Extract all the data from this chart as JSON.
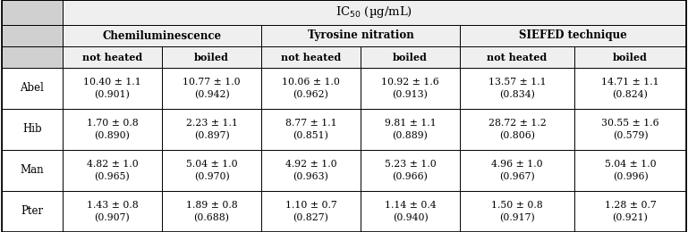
{
  "title_row": "IC₅₀ (µg/mL)",
  "title_row_display": "IC$_{50}$ (µg/mL)",
  "col_groups": [
    "Chemiluminescence",
    "Tyrosine nitration",
    "SIEFED technique"
  ],
  "sub_cols": [
    "not heated",
    "boiled"
  ],
  "row_labels": [
    "Abel",
    "Hib",
    "Man",
    "Pter"
  ],
  "cell_data": [
    [
      "10.40 ± 1.1\n(0.901)",
      "10.77 ± 1.0\n(0.942)",
      "10.06 ± 1.0\n(0.962)",
      "10.92 ± 1.6\n(0.913)",
      "13.57 ± 1.1\n(0.834)",
      "14.71 ± 1.1\n(0.824)"
    ],
    [
      "1.70 ± 0.8\n(0.890)",
      "2.23 ± 1.1\n(0.897)",
      "8.77 ± 1.1\n(0.851)",
      "9.81 ± 1.1\n(0.889)",
      "28.72 ± 1.2\n(0.806)",
      "30.55 ± 1.6\n(0.579)"
    ],
    [
      "4.82 ± 1.0\n(0.965)",
      "5.04 ± 1.0\n(0.970)",
      "4.92 ± 1.0\n(0.963)",
      "5.23 ± 1.0\n(0.966)",
      "4.96 ± 1.0\n(0.967)",
      "5.04 ± 1.0\n(0.996)"
    ],
    [
      "1.43 ± 0.8\n(0.907)",
      "1.89 ± 0.8\n(0.688)",
      "1.10 ± 0.7\n(0.827)",
      "1.14 ± 0.4\n(0.940)",
      "1.50 ± 0.8\n(0.917)",
      "1.28 ± 0.7\n(0.921)"
    ]
  ],
  "header_bg": "#efefef",
  "corner_bg": "#d0d0d0",
  "body_bg": "#ffffff",
  "border_color": "#000000",
  "text_color": "#000000",
  "fig_width": 7.69,
  "fig_height": 2.6,
  "dpi": 100
}
